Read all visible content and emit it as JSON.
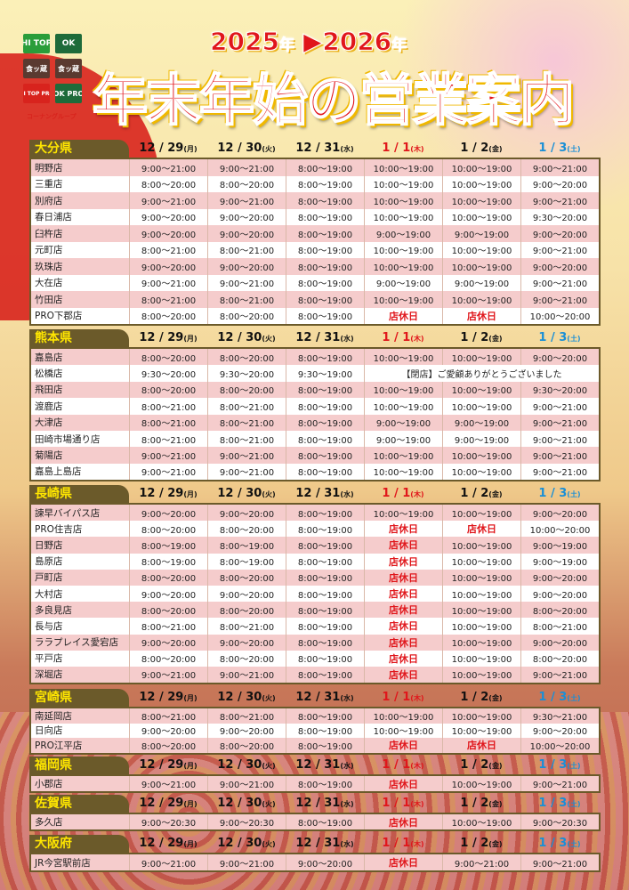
{
  "header": {
    "years": {
      "from": "2025",
      "to": "2026",
      "year_suffix": "年",
      "arrow": "▶"
    },
    "title": "年末年始の営業案内",
    "logos": [
      "HI TOP",
      "OK",
      "食ッ蔵",
      "食ッ蔵",
      "HI TOP PRO",
      "OK PRO"
    ],
    "group_label": "コーナングループ"
  },
  "colors": {
    "holiday": "#e0161b",
    "saturday": "#1a8fd6",
    "pref_bg": "#6b5a2a",
    "pref_text": "#ffe600",
    "row_alt": "#f5cccc"
  },
  "closed_label": "店休日",
  "days": [
    {
      "date": "12 / 29",
      "dow": "(月)",
      "color": "default"
    },
    {
      "date": "12 / 30",
      "dow": "(火)",
      "color": "default"
    },
    {
      "date": "12 / 31",
      "dow": "(水)",
      "color": "default"
    },
    {
      "date": "1 / 1",
      "dow": "(木)",
      "color": "red"
    },
    {
      "date": "1 / 2",
      "dow": "(金)",
      "color": "default"
    },
    {
      "date": "1 / 3",
      "dow": "(土)",
      "color": "blue"
    }
  ],
  "regions": [
    {
      "name": "大分県",
      "stores": [
        {
          "name": "明野店",
          "hours": [
            "9:00〜21:00",
            "9:00〜21:00",
            "8:00〜19:00",
            "10:00〜19:00",
            "10:00〜19:00",
            "9:00〜21:00"
          ]
        },
        {
          "name": "三重店",
          "hours": [
            "8:00〜20:00",
            "8:00〜20:00",
            "8:00〜19:00",
            "10:00〜19:00",
            "10:00〜19:00",
            "9:00〜20:00"
          ]
        },
        {
          "name": "別府店",
          "hours": [
            "9:00〜21:00",
            "9:00〜21:00",
            "8:00〜19:00",
            "10:00〜19:00",
            "10:00〜19:00",
            "9:00〜21:00"
          ]
        },
        {
          "name": "春日浦店",
          "hours": [
            "9:00〜20:00",
            "9:00〜20:00",
            "8:00〜19:00",
            "10:00〜19:00",
            "10:00〜19:00",
            "9:30〜20:00"
          ]
        },
        {
          "name": "臼杵店",
          "hours": [
            "9:00〜20:00",
            "9:00〜20:00",
            "8:00〜19:00",
            "9:00〜19:00",
            "9:00〜19:00",
            "9:00〜20:00"
          ]
        },
        {
          "name": "元町店",
          "hours": [
            "8:00〜21:00",
            "8:00〜21:00",
            "8:00〜19:00",
            "10:00〜19:00",
            "10:00〜19:00",
            "9:00〜21:00"
          ]
        },
        {
          "name": "玖珠店",
          "hours": [
            "9:00〜20:00",
            "9:00〜20:00",
            "8:00〜19:00",
            "10:00〜19:00",
            "10:00〜19:00",
            "9:00〜20:00"
          ]
        },
        {
          "name": "大在店",
          "hours": [
            "9:00〜21:00",
            "9:00〜21:00",
            "8:00〜19:00",
            "9:00〜19:00",
            "9:00〜19:00",
            "9:00〜21:00"
          ]
        },
        {
          "name": "竹田店",
          "hours": [
            "8:00〜21:00",
            "8:00〜21:00",
            "8:00〜19:00",
            "10:00〜19:00",
            "10:00〜19:00",
            "9:00〜21:00"
          ]
        },
        {
          "name": "PRO下郡店",
          "hours": [
            "8:00〜20:00",
            "8:00〜20:00",
            "8:00〜19:00",
            "店休日",
            "店休日",
            "10:00〜20:00"
          ]
        }
      ]
    },
    {
      "name": "熊本県",
      "stores": [
        {
          "name": "嘉島店",
          "hours": [
            "8:00〜20:00",
            "8:00〜20:00",
            "8:00〜19:00",
            "10:00〜19:00",
            "10:00〜19:00",
            "9:00〜20:00"
          ]
        },
        {
          "name": "松橋店",
          "hours": [
            "9:30〜20:00",
            "9:30〜20:00",
            "9:30〜19:00"
          ],
          "note": "【閉店】ご愛顧ありがとうございました"
        },
        {
          "name": "飛田店",
          "hours": [
            "8:00〜20:00",
            "8:00〜20:00",
            "8:00〜19:00",
            "10:00〜19:00",
            "10:00〜19:00",
            "9:30〜20:00"
          ]
        },
        {
          "name": "渡鹿店",
          "hours": [
            "8:00〜21:00",
            "8:00〜21:00",
            "8:00〜19:00",
            "10:00〜19:00",
            "10:00〜19:00",
            "9:00〜21:00"
          ]
        },
        {
          "name": "大津店",
          "hours": [
            "8:00〜21:00",
            "8:00〜21:00",
            "8:00〜19:00",
            "9:00〜19:00",
            "9:00〜19:00",
            "9:00〜21:00"
          ]
        },
        {
          "name": "田崎市場通り店",
          "hours": [
            "8:00〜21:00",
            "8:00〜21:00",
            "8:00〜19:00",
            "9:00〜19:00",
            "9:00〜19:00",
            "9:00〜21:00"
          ]
        },
        {
          "name": "菊陽店",
          "hours": [
            "9:00〜21:00",
            "9:00〜21:00",
            "8:00〜19:00",
            "10:00〜19:00",
            "10:00〜19:00",
            "9:00〜21:00"
          ]
        },
        {
          "name": "嘉島上島店",
          "hours": [
            "9:00〜21:00",
            "9:00〜21:00",
            "8:00〜19:00",
            "10:00〜19:00",
            "10:00〜19:00",
            "9:00〜21:00"
          ]
        }
      ]
    },
    {
      "name": "長崎県",
      "stores": [
        {
          "name": "諫早バイパス店",
          "hours": [
            "9:00〜20:00",
            "9:00〜20:00",
            "8:00〜19:00",
            "10:00〜19:00",
            "10:00〜19:00",
            "9:00〜20:00"
          ]
        },
        {
          "name": "PRO住吉店",
          "hours": [
            "8:00〜20:00",
            "8:00〜20:00",
            "8:00〜19:00",
            "店休日",
            "店休日",
            "10:00〜20:00"
          ]
        },
        {
          "name": "日野店",
          "hours": [
            "8:00〜19:00",
            "8:00〜19:00",
            "8:00〜19:00",
            "店休日",
            "10:00〜19:00",
            "9:00〜19:00"
          ]
        },
        {
          "name": "島原店",
          "hours": [
            "8:00〜19:00",
            "8:00〜19:00",
            "8:00〜19:00",
            "店休日",
            "10:00〜19:00",
            "9:00〜19:00"
          ]
        },
        {
          "name": "戸町店",
          "hours": [
            "8:00〜20:00",
            "8:00〜20:00",
            "8:00〜19:00",
            "店休日",
            "10:00〜19:00",
            "9:00〜20:00"
          ]
        },
        {
          "name": "大村店",
          "hours": [
            "9:00〜20:00",
            "9:00〜20:00",
            "8:00〜19:00",
            "店休日",
            "10:00〜19:00",
            "9:00〜20:00"
          ]
        },
        {
          "name": "多良見店",
          "hours": [
            "8:00〜20:00",
            "8:00〜20:00",
            "8:00〜19:00",
            "店休日",
            "10:00〜19:00",
            "8:00〜20:00"
          ]
        },
        {
          "name": "長与店",
          "hours": [
            "8:00〜21:00",
            "8:00〜21:00",
            "8:00〜19:00",
            "店休日",
            "10:00〜19:00",
            "8:00〜21:00"
          ]
        },
        {
          "name": "ララプレイス愛宕店",
          "hours": [
            "9:00〜20:00",
            "9:00〜20:00",
            "8:00〜19:00",
            "店休日",
            "10:00〜19:00",
            "9:00〜20:00"
          ]
        },
        {
          "name": "平戸店",
          "hours": [
            "8:00〜20:00",
            "8:00〜20:00",
            "8:00〜19:00",
            "店休日",
            "10:00〜19:00",
            "8:00〜20:00"
          ]
        },
        {
          "name": "深堀店",
          "hours": [
            "9:00〜21:00",
            "9:00〜21:00",
            "8:00〜19:00",
            "店休日",
            "10:00〜19:00",
            "9:00〜21:00"
          ]
        }
      ]
    },
    {
      "name": "宮崎県",
      "stores": [
        {
          "name": "南延岡店",
          "hours": [
            "8:00〜21:00",
            "8:00〜21:00",
            "8:00〜19:00",
            "10:00〜19:00",
            "10:00〜19:00",
            "9:30〜21:00"
          ]
        },
        {
          "name": "日向店",
          "hours": [
            "9:00〜20:00",
            "9:00〜20:00",
            "8:00〜19:00",
            "10:00〜19:00",
            "10:00〜19:00",
            "9:00〜20:00"
          ]
        },
        {
          "name": "PRO江平店",
          "hours": [
            "8:00〜20:00",
            "8:00〜20:00",
            "8:00〜19:00",
            "店休日",
            "店休日",
            "10:00〜20:00"
          ]
        }
      ]
    },
    {
      "name": "福岡県",
      "stores": [
        {
          "name": "小郡店",
          "hours": [
            "9:00〜21:00",
            "9:00〜21:00",
            "8:00〜19:00",
            "店休日",
            "10:00〜19:00",
            "9:00〜21:00"
          ]
        }
      ]
    },
    {
      "name": "佐賀県",
      "stores": [
        {
          "name": "多久店",
          "hours": [
            "9:00〜20:30",
            "9:00〜20:30",
            "8:00〜19:00",
            "店休日",
            "10:00〜19:00",
            "9:00〜20:30"
          ]
        }
      ]
    },
    {
      "name": "大阪府",
      "stores": [
        {
          "name": "JR今宮駅前店",
          "hours": [
            "9:00〜21:00",
            "9:00〜21:00",
            "9:00〜20:00",
            "店休日",
            "9:00〜21:00",
            "9:00〜21:00"
          ]
        }
      ]
    }
  ]
}
